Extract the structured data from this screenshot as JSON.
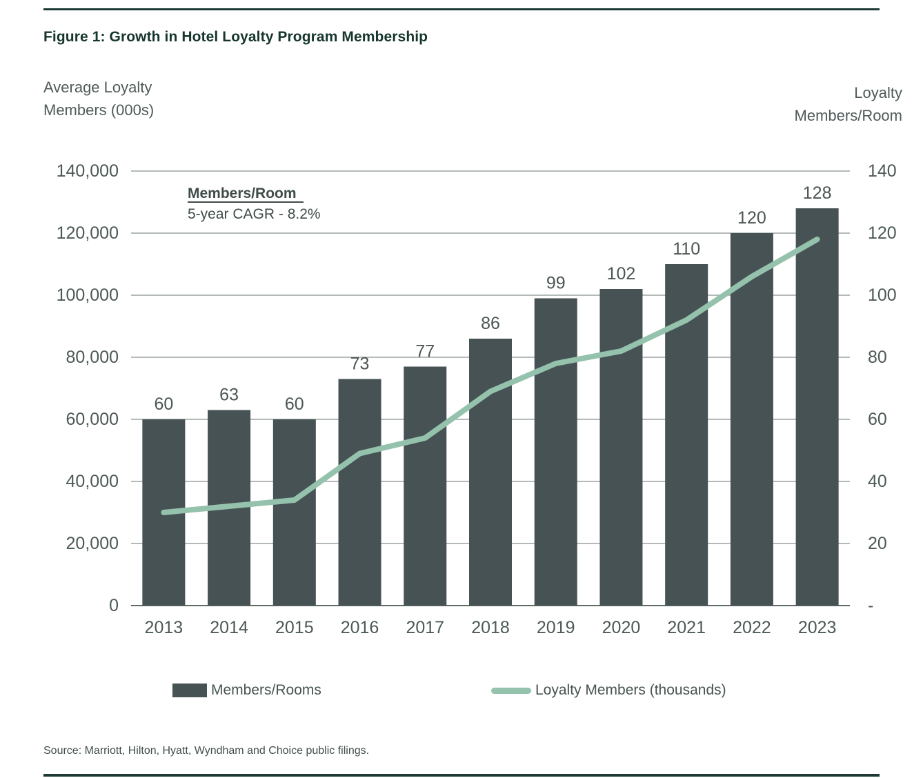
{
  "page": {
    "title": "Figure 1: Growth in Hotel Loyalty Program Membership",
    "source": "Source: Marriott, Hilton, Hyatt, Wyndham and Choice public filings."
  },
  "left_axis_title": [
    "Average Loyalty",
    "Members (000s)"
  ],
  "right_axis_title": [
    "Loyalty",
    "Members/Room"
  ],
  "annotation": {
    "heading": "Members/Room",
    "subtext": "5-year CAGR - 8.2%"
  },
  "legend": [
    {
      "label": "Members/Rooms",
      "swatch": "bar"
    },
    {
      "label": "Loyalty Members (thousands)",
      "swatch": "line"
    }
  ],
  "colors": {
    "bar": "#475254",
    "line": "#94c2ac",
    "grid": "#9aa3a1",
    "baseline": "#5d6a67",
    "tick_text": "#4c5957",
    "bar_label_text": "#4b5654",
    "ink": "#1c3a33"
  },
  "chart_data": {
    "type": "bar",
    "subtype": "combo bar+line, dual axis",
    "title": "Figure 1: Growth in Hotel Loyalty Program Membership",
    "categories": [
      "2013",
      "2014",
      "2015",
      "2016",
      "2017",
      "2018",
      "2019",
      "2020",
      "2021",
      "2022",
      "2023"
    ],
    "series": [
      {
        "name": "Members/Rooms",
        "type": "bar",
        "axis": "right",
        "values": [
          60,
          63,
          60,
          73,
          77,
          86,
          99,
          102,
          110,
          120,
          128
        ]
      },
      {
        "name": "Loyalty Members (thousands)",
        "type": "line",
        "axis": "left",
        "values_thousands": [
          30,
          32,
          34,
          49,
          54,
          69,
          78,
          82,
          92,
          106,
          118
        ]
      }
    ],
    "left_axis": {
      "label": "Average Loyalty Members (000s)",
      "min": 0,
      "max": 140000,
      "tick_step": 20000,
      "ticks": [
        "140,000",
        "120,000",
        "100,000",
        "80,000",
        "60,000",
        "40,000",
        "20,000",
        "0"
      ]
    },
    "right_axis": {
      "label": "Loyalty Members/Room",
      "min": 0,
      "max": 140,
      "tick_step": 20,
      "ticks": [
        "140",
        "120",
        "100",
        "80",
        "60",
        "40",
        "20",
        "-"
      ]
    },
    "grid": true,
    "legend_position": "bottom",
    "annotation": "Members/Room 5-year CAGR - 8.2%"
  }
}
